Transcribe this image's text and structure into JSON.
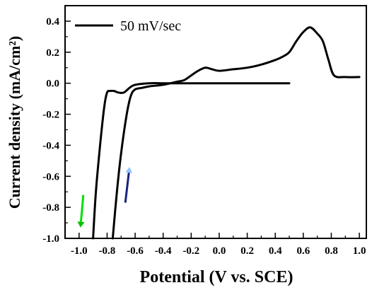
{
  "chart_data": {
    "type": "line",
    "xlabel": "Potential (V vs. SCE)",
    "ylabel": "Current density (mA/cm²)",
    "xlim": [
      -1.1,
      1.05
    ],
    "ylim": [
      -1.0,
      0.5
    ],
    "x_ticks": [
      -1.0,
      -0.8,
      -0.6,
      -0.4,
      -0.2,
      0.0,
      0.2,
      0.4,
      0.6,
      0.8,
      1.0
    ],
    "x_tick_labels": [
      "-1.0",
      "-0.8",
      "-0.6",
      "-0.4",
      "-0.2",
      "0.0",
      "0.2",
      "0.4",
      "0.6",
      "0.8",
      "1.0"
    ],
    "y_ticks": [
      -1.0,
      -0.8,
      -0.6,
      -0.4,
      -0.2,
      0.0,
      0.2,
      0.4
    ],
    "y_tick_labels": [
      "-1.0",
      "-0.8",
      "-0.6",
      "-0.4",
      "-0.2",
      "0.0",
      "0.2",
      "0.4"
    ],
    "grid": false,
    "legend_position": "top-left",
    "series": [
      {
        "name": "50 mV/sec",
        "color": "#000000",
        "x": [
          -0.9,
          -0.88,
          -0.85,
          -0.82,
          -0.8,
          -0.78,
          -0.75,
          -0.72,
          -0.68,
          -0.64,
          -0.6,
          -0.5,
          -0.4,
          -0.3,
          -0.2,
          -0.1,
          0.0,
          0.1,
          0.2,
          0.3,
          0.4,
          0.5
        ],
        "y": [
          -1.0,
          -0.7,
          -0.4,
          -0.15,
          -0.06,
          -0.05,
          -0.05,
          -0.06,
          -0.06,
          -0.03,
          -0.01,
          0.0,
          0.0,
          0.0,
          0.0,
          0.0,
          0.0,
          0.0,
          0.0,
          0.0,
          0.0,
          0.0
        ]
      },
      {
        "x": [
          1.0,
          0.9,
          0.82,
          0.78,
          0.74,
          0.7,
          0.65,
          0.6,
          0.55,
          0.5,
          0.45,
          0.4,
          0.3,
          0.2,
          0.1,
          0.0,
          -0.05,
          -0.1,
          -0.15,
          -0.2,
          -0.25,
          -0.3,
          -0.4,
          -0.5,
          -0.55,
          -0.6,
          -0.63,
          -0.66,
          -0.7,
          -0.73,
          -0.76
        ],
        "y": [
          0.04,
          0.04,
          0.05,
          0.15,
          0.27,
          0.32,
          0.36,
          0.33,
          0.27,
          0.2,
          0.17,
          0.15,
          0.12,
          0.1,
          0.09,
          0.08,
          0.09,
          0.1,
          0.08,
          0.05,
          0.02,
          0.01,
          -0.01,
          -0.02,
          -0.03,
          -0.04,
          -0.08,
          -0.2,
          -0.45,
          -0.7,
          -1.0
        ]
      }
    ],
    "arrows": [
      {
        "color_start": "#00e000",
        "color_end": "#00c000",
        "from": [
          -0.97,
          -0.72
        ],
        "to": [
          -0.99,
          -0.93
        ]
      },
      {
        "color_start": "#1a237e",
        "color_end": "#8ec5ff",
        "from": [
          -0.67,
          -0.77
        ],
        "to": [
          -0.64,
          -0.54
        ]
      }
    ]
  }
}
